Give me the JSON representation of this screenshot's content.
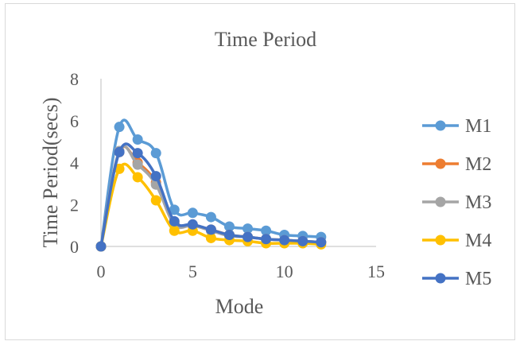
{
  "chart_data": {
    "type": "line",
    "title": "Time Period",
    "xlabel": "Mode",
    "ylabel": "Time Period(secs)",
    "xlim": [
      0,
      15
    ],
    "ylim": [
      0,
      8
    ],
    "xticks": [
      "0",
      "5",
      "10",
      "15"
    ],
    "yticks": [
      "0",
      "2",
      "4",
      "6",
      "8"
    ],
    "legend_position": "right",
    "grid": false,
    "smooth": true,
    "markers": true,
    "x": [
      0,
      1,
      2,
      3,
      4,
      5,
      6,
      7,
      8,
      9,
      10,
      11,
      12
    ],
    "series": [
      {
        "name": "M1",
        "color": "#5b9bd5",
        "values": [
          0,
          5.7,
          5.1,
          4.45,
          1.75,
          1.6,
          1.4,
          0.95,
          0.85,
          0.75,
          0.55,
          0.5,
          0.45
        ]
      },
      {
        "name": "M2",
        "color": "#ed7d31",
        "values": [
          0,
          4.5,
          4.0,
          3.05,
          1.1,
          1.0,
          0.8,
          0.55,
          0.45,
          0.35,
          0.3,
          0.25,
          0.2
        ]
      },
      {
        "name": "M3",
        "color": "#a5a5a5",
        "values": [
          0,
          4.55,
          3.9,
          2.95,
          1.05,
          1.0,
          0.75,
          0.5,
          0.45,
          0.35,
          0.3,
          0.25,
          0.2
        ]
      },
      {
        "name": "M4",
        "color": "#ffc000",
        "values": [
          0,
          3.7,
          3.3,
          2.2,
          0.75,
          0.75,
          0.4,
          0.3,
          0.25,
          0.15,
          0.15,
          0.15,
          0.1
        ]
      },
      {
        "name": "M5",
        "color": "#4472c4",
        "values": [
          0,
          4.5,
          4.45,
          3.35,
          1.2,
          1.05,
          0.8,
          0.55,
          0.45,
          0.35,
          0.3,
          0.25,
          0.2
        ]
      }
    ]
  }
}
